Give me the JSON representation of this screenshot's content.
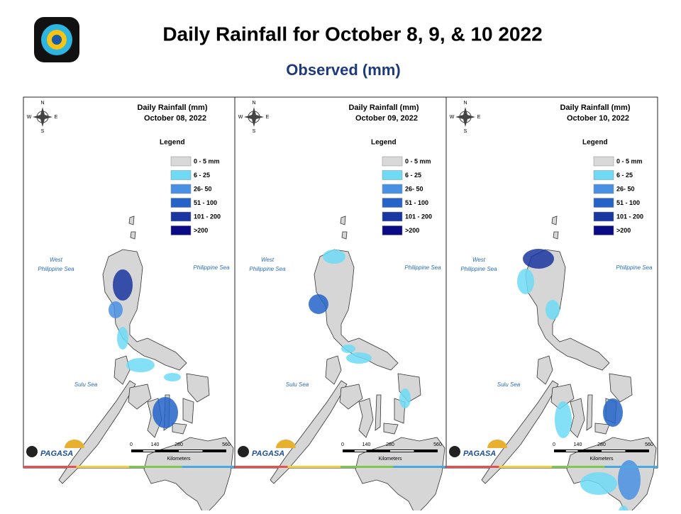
{
  "header": {
    "title": "Daily Rainfall for October 8, 9, & 10 2022",
    "subtitle": "Observed (mm)"
  },
  "panels": [
    {
      "title": "Daily Rainfall (mm)",
      "date": "October 08, 2022"
    },
    {
      "title": "Daily Rainfall (mm)",
      "date": "October 09, 2022"
    },
    {
      "title": "Daily Rainfall (mm)",
      "date": "October 10, 2022"
    }
  ],
  "legend": {
    "title": "Legend",
    "items": [
      {
        "label": "0 - 5 mm",
        "color": "#d9d9d9"
      },
      {
        "label": "6 - 25",
        "color": "#6fdaf5"
      },
      {
        "label": "26- 50",
        "color": "#4a90e2"
      },
      {
        "label": "51 - 100",
        "color": "#2563c9"
      },
      {
        "label": "101 - 200",
        "color": "#1a36a0"
      },
      {
        "label": ">200",
        "color": "#0b0b86"
      }
    ]
  },
  "seas": {
    "west": [
      "West",
      "Philippine Sea"
    ],
    "east": "Philippine Sea",
    "sulu": "Sulu Sea"
  },
  "compass": {
    "n": "N",
    "s": "S",
    "e": "E",
    "w": "W"
  },
  "scale": {
    "ticks": [
      "0",
      "140",
      "280",
      "560"
    ],
    "unit": "Kilometers"
  },
  "logo": "PAGASA"
}
